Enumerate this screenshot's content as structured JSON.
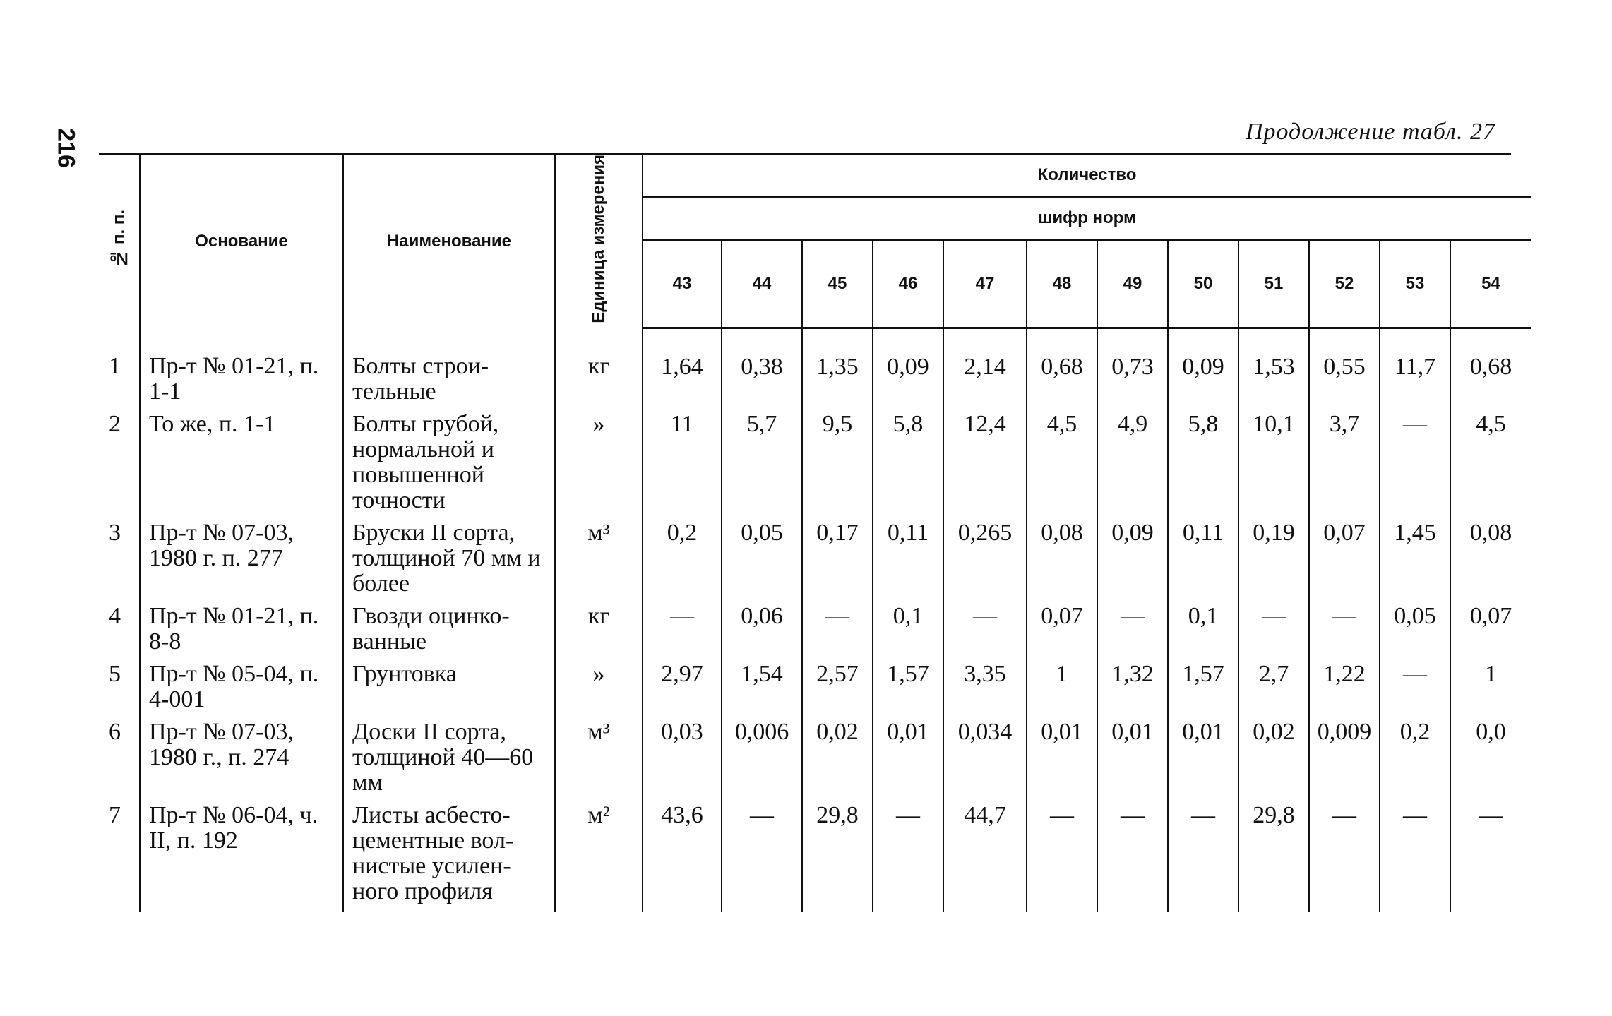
{
  "page_number": "216",
  "caption": "Продолжение табл. 27",
  "headers": {
    "num": "№ п. п.",
    "basis": "Основание",
    "name": "Наименование",
    "unit": "Единица измерения",
    "quantity": "Количество",
    "norm_code": "шифр норм",
    "codes": [
      "43",
      "44",
      "45",
      "46",
      "47",
      "48",
      "49",
      "50",
      "51",
      "52",
      "53",
      "54"
    ]
  },
  "rows": [
    {
      "num": "1",
      "basis": "Пр-т № 01-21, п. 1-1",
      "name": "Болты строи-тельные",
      "unit": "кг",
      "values": [
        "1,64",
        "0,38",
        "1,35",
        "0,09",
        "2,14",
        "0,68",
        "0,73",
        "0,09",
        "1,53",
        "0,55",
        "11,7",
        "0,68"
      ]
    },
    {
      "num": "2",
      "basis": "То же, п. 1-1",
      "name": "Болты грубой, нормальной и повышенной точности",
      "unit": "»",
      "values": [
        "11",
        "5,7",
        "9,5",
        "5,8",
        "12,4",
        "4,5",
        "4,9",
        "5,8",
        "10,1",
        "3,7",
        "—",
        "4,5"
      ]
    },
    {
      "num": "3",
      "basis": "Пр-т № 07-03, 1980 г. п. 277",
      "name": "Бруски II сорта, толщиной 70 мм и более",
      "unit": "м³",
      "values": [
        "0,2",
        "0,05",
        "0,17",
        "0,11",
        "0,265",
        "0,08",
        "0,09",
        "0,11",
        "0,19",
        "0,07",
        "1,45",
        "0,08"
      ]
    },
    {
      "num": "4",
      "basis": "Пр-т № 01-21, п. 8-8",
      "name": "Гвозди оцинко-ванные",
      "unit": "кг",
      "values": [
        "—",
        "0,06",
        "—",
        "0,1",
        "—",
        "0,07",
        "—",
        "0,1",
        "—",
        "—",
        "0,05",
        "0,07"
      ]
    },
    {
      "num": "5",
      "basis": "Пр-т № 05-04, п. 4-001",
      "name": "Грунтовка",
      "unit": "»",
      "values": [
        "2,97",
        "1,54",
        "2,57",
        "1,57",
        "3,35",
        "1",
        "1,32",
        "1,57",
        "2,7",
        "1,22",
        "—",
        "1"
      ]
    },
    {
      "num": "6",
      "basis": "Пр-т № 07-03, 1980 г., п. 274",
      "name": "Доски II сорта, толщиной 40—60 мм",
      "unit": "м³",
      "values": [
        "0,03",
        "0,006",
        "0,02",
        "0,01",
        "0,034",
        "0,01",
        "0,01",
        "0,01",
        "0,02",
        "0,009",
        "0,2",
        "0,0"
      ]
    },
    {
      "num": "7",
      "basis": "Пр-т № 06-04, ч. II, п. 192",
      "name": "Листы асбесто-цементные вол-нистые усилен-ного профиля",
      "unit": "м²",
      "values": [
        "43,6",
        "—",
        "29,8",
        "—",
        "44,7",
        "—",
        "—",
        "—",
        "29,8",
        "—",
        "—",
        "—"
      ]
    }
  ]
}
